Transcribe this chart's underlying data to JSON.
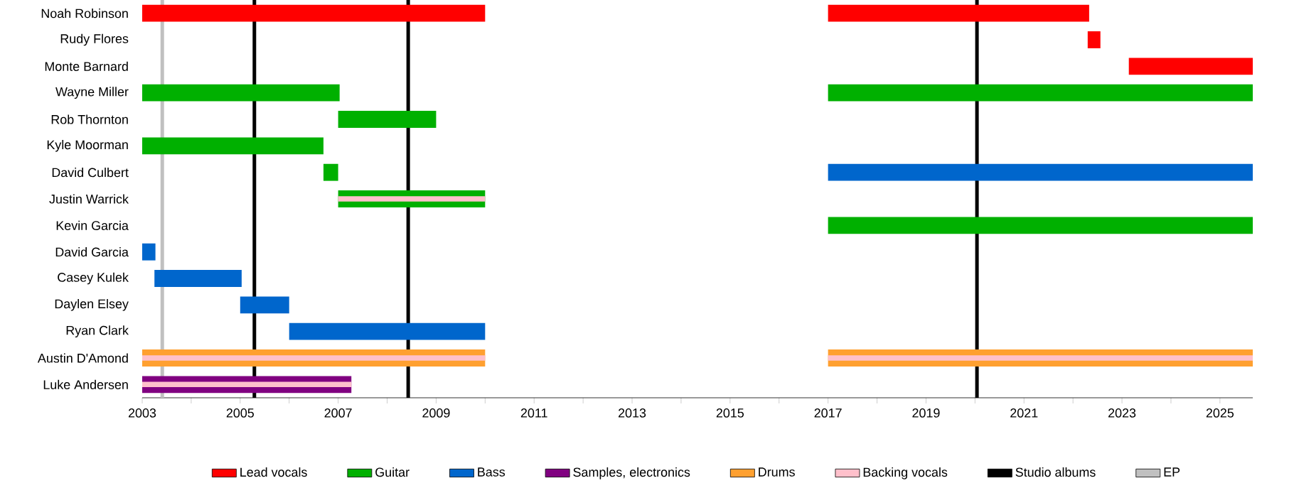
{
  "chart_data": {
    "type": "bar",
    "orientation": "horizontal",
    "categories": [
      "Noah Robinson",
      "Rudy Flores",
      "Monte Barnard",
      "Wayne Miller",
      "Rob Thornton",
      "Kyle Moorman",
      "David Culbert",
      "Justin Warrick",
      "Kevin Garcia",
      "David Garcia",
      "Casey Kulek",
      "Daylen Elsey",
      "Ryan Clark",
      "Austin D'Amond",
      "Luke Andersen"
    ],
    "series": [
      {
        "name": "Lead vocals",
        "color": "#ff0000",
        "base": [
          2003,
          2022.3,
          2023.14,
          null,
          null,
          null,
          null,
          null,
          null,
          null,
          null,
          null,
          null,
          null,
          null
        ],
        "values": [
          7.0,
          0.26,
          2.53,
          null,
          null,
          null,
          null,
          null,
          null,
          null,
          null,
          null,
          null,
          null,
          null
        ]
      },
      {
        "color": "#ff0000",
        "base": [
          2017,
          null,
          null,
          null,
          null,
          null,
          null,
          null,
          null,
          null,
          null,
          null,
          null,
          null,
          null
        ],
        "values": [
          5.33,
          null,
          null,
          null,
          null,
          null,
          null,
          null,
          null,
          null,
          null,
          null,
          null,
          null,
          null
        ]
      },
      {
        "name": "Guitar",
        "color": "#00b000",
        "base": [
          null,
          null,
          null,
          2003,
          2007,
          2003,
          2006.7,
          2007,
          2017,
          null,
          null,
          null,
          null,
          null,
          null
        ],
        "values": [
          null,
          null,
          null,
          4.03,
          2.0,
          3.7,
          0.3,
          3.0,
          8.67,
          null,
          null,
          null,
          null,
          null,
          null
        ]
      },
      {
        "color": "#00b000",
        "base": [
          null,
          null,
          null,
          2017,
          null,
          null,
          null,
          null,
          null,
          null,
          null,
          null,
          null,
          null,
          null
        ],
        "values": [
          null,
          null,
          null,
          8.67,
          null,
          null,
          null,
          null,
          null,
          null,
          null,
          null,
          null,
          null,
          null
        ]
      },
      {
        "name": "Bass",
        "color": "#0066cc",
        "base": [
          null,
          null,
          null,
          null,
          null,
          null,
          2017,
          null,
          null,
          2003,
          2003.25,
          2005,
          2006,
          null,
          null
        ],
        "values": [
          null,
          null,
          null,
          null,
          null,
          null,
          8.67,
          null,
          null,
          0.27,
          1.78,
          1.0,
          4.0,
          null,
          null
        ]
      },
      {
        "name": "Samples, electronics",
        "color": "#800080",
        "base": [
          null,
          null,
          null,
          null,
          null,
          null,
          null,
          null,
          null,
          null,
          null,
          null,
          null,
          null,
          2003
        ],
        "values": [
          null,
          null,
          null,
          null,
          null,
          null,
          null,
          null,
          null,
          null,
          null,
          null,
          null,
          null,
          4.27
        ]
      },
      {
        "name": "Drums",
        "color": "#ffa030",
        "base": [
          null,
          null,
          null,
          null,
          null,
          null,
          null,
          null,
          null,
          null,
          null,
          null,
          null,
          2003,
          null
        ],
        "values": [
          null,
          null,
          null,
          null,
          null,
          null,
          null,
          null,
          null,
          null,
          null,
          null,
          null,
          7.0,
          null
        ]
      },
      {
        "color": "#ffa030",
        "base": [
          null,
          null,
          null,
          null,
          null,
          null,
          null,
          null,
          null,
          null,
          null,
          null,
          null,
          2017,
          null
        ],
        "values": [
          null,
          null,
          null,
          null,
          null,
          null,
          null,
          null,
          null,
          null,
          null,
          null,
          null,
          8.67,
          null
        ]
      },
      {
        "name": "Backing vocals",
        "color": "#ffc0cb",
        "base": [
          null,
          null,
          null,
          null,
          null,
          null,
          null,
          2007,
          null,
          null,
          null,
          null,
          null,
          2003,
          2003
        ],
        "values": [
          null,
          null,
          null,
          null,
          null,
          null,
          null,
          3.0,
          null,
          null,
          null,
          null,
          null,
          7.0,
          4.27
        ]
      },
      {
        "color": "#ffc0cb",
        "base": [
          null,
          null,
          null,
          null,
          null,
          null,
          null,
          null,
          null,
          null,
          null,
          null,
          null,
          2017,
          null
        ],
        "values": [
          null,
          null,
          null,
          null,
          null,
          null,
          null,
          null,
          null,
          null,
          null,
          null,
          null,
          8.67,
          null
        ]
      }
    ],
    "xlim": [
      2003,
      2025.67
    ],
    "xticks": [
      2003,
      {
        "value": 2004,
        "label": null
      },
      2005,
      {
        "value": 2006,
        "label": null
      },
      2007,
      {
        "value": 2008,
        "label": null
      },
      2009,
      {
        "value": 2010,
        "label": null
      },
      2011,
      {
        "value": 2012,
        "label": null
      },
      2013,
      {
        "value": 2014,
        "label": null
      },
      2015,
      {
        "value": 2016,
        "label": null
      },
      2017,
      {
        "value": 2018,
        "label": null
      },
      2019,
      {
        "value": 2020,
        "label": null
      },
      2021,
      {
        "value": 2022,
        "label": null
      },
      2023,
      {
        "value": 2024,
        "label": null
      },
      2025
    ],
    "ref_lines": [
      {
        "axis": "x",
        "value": 2005.29,
        "label": "Studio albums",
        "color": "#000000"
      },
      {
        "axis": "x",
        "value": 2008.43,
        "color": "#000000"
      },
      {
        "axis": "x",
        "value": 2020.04,
        "color": "#000000"
      },
      {
        "axis": "x",
        "value": 2003.41,
        "label": "EP",
        "color": "#c0c0c0"
      }
    ],
    "legend": "bottom"
  }
}
